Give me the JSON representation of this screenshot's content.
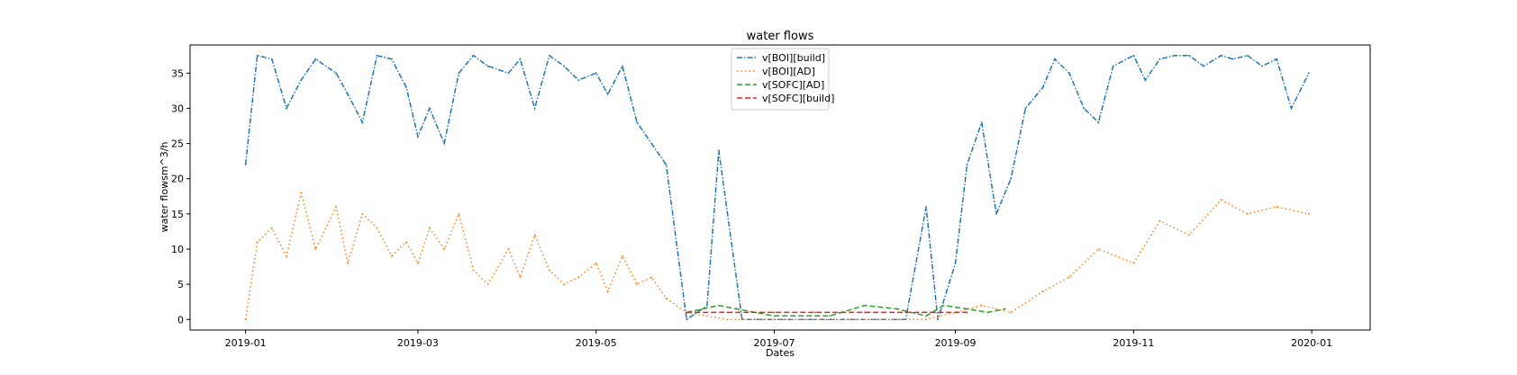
{
  "chart_data": {
    "type": "line",
    "title": "water flows",
    "xlabel": "Dates",
    "ylabel": "water flowsm^3/h",
    "xlim": [
      "2018-12-13",
      "2020-01-21"
    ],
    "ylim": [
      -1.5,
      39
    ],
    "x_ticks": [
      "2019-01",
      "2019-03",
      "2019-05",
      "2019-07",
      "2019-09",
      "2019-11",
      "2020-01"
    ],
    "y_ticks": [
      0,
      5,
      10,
      15,
      20,
      25,
      30,
      35
    ],
    "grid": false,
    "legend_position": "top-center",
    "series": [
      {
        "name": "v[BOI][build]",
        "color": "#1f77b4",
        "style": "dashdot",
        "x": [
          "2019-01-01",
          "2019-01-05",
          "2019-01-10",
          "2019-01-15",
          "2019-01-20",
          "2019-01-25",
          "2019-02-01",
          "2019-02-05",
          "2019-02-10",
          "2019-02-15",
          "2019-02-20",
          "2019-02-25",
          "2019-03-01",
          "2019-03-05",
          "2019-03-10",
          "2019-03-15",
          "2019-03-20",
          "2019-03-25",
          "2019-04-01",
          "2019-04-05",
          "2019-04-10",
          "2019-04-15",
          "2019-04-20",
          "2019-04-25",
          "2019-05-01",
          "2019-05-05",
          "2019-05-10",
          "2019-05-15",
          "2019-05-20",
          "2019-05-25",
          "2019-06-01",
          "2019-06-08",
          "2019-06-12",
          "2019-06-20",
          "2019-07-01",
          "2019-07-15",
          "2019-08-01",
          "2019-08-15",
          "2019-08-22",
          "2019-08-26",
          "2019-09-01",
          "2019-09-05",
          "2019-09-10",
          "2019-09-15",
          "2019-09-20",
          "2019-09-25",
          "2019-10-01",
          "2019-10-05",
          "2019-10-10",
          "2019-10-15",
          "2019-10-20",
          "2019-10-25",
          "2019-11-01",
          "2019-11-05",
          "2019-11-10",
          "2019-11-15",
          "2019-11-20",
          "2019-11-25",
          "2019-12-01",
          "2019-12-05",
          "2019-12-10",
          "2019-12-15",
          "2019-12-20",
          "2019-12-25",
          "2019-12-31"
        ],
        "values": [
          22,
          37.5,
          37,
          30,
          34,
          37,
          35,
          32,
          28,
          37.5,
          37,
          33,
          26,
          30,
          25,
          35,
          37.5,
          36,
          35,
          37,
          30,
          37.5,
          36,
          34,
          35,
          32,
          36,
          28,
          25,
          22,
          0,
          2,
          24,
          0,
          0,
          0,
          0,
          0,
          16,
          0,
          8,
          22,
          28,
          15,
          20,
          30,
          33,
          37,
          35,
          30,
          28,
          36,
          37.5,
          34,
          37,
          37.5,
          37.5,
          36,
          37.5,
          37,
          37.5,
          36,
          37,
          30,
          35
        ]
      },
      {
        "name": "v[BOI][AD]",
        "color": "#ff7f0e",
        "style": "dotted",
        "x": [
          "2019-01-01",
          "2019-01-05",
          "2019-01-10",
          "2019-01-15",
          "2019-01-20",
          "2019-01-25",
          "2019-02-01",
          "2019-02-05",
          "2019-02-10",
          "2019-02-15",
          "2019-02-20",
          "2019-02-25",
          "2019-03-01",
          "2019-03-05",
          "2019-03-10",
          "2019-03-15",
          "2019-03-20",
          "2019-03-25",
          "2019-04-01",
          "2019-04-05",
          "2019-04-10",
          "2019-04-15",
          "2019-04-20",
          "2019-04-25",
          "2019-05-01",
          "2019-05-05",
          "2019-05-10",
          "2019-05-15",
          "2019-05-20",
          "2019-05-25",
          "2019-06-01",
          "2019-06-15",
          "2019-07-01",
          "2019-08-01",
          "2019-08-22",
          "2019-09-01",
          "2019-09-10",
          "2019-09-20",
          "2019-10-01",
          "2019-10-10",
          "2019-10-20",
          "2019-11-01",
          "2019-11-10",
          "2019-11-20",
          "2019-12-01",
          "2019-12-10",
          "2019-12-20",
          "2019-12-31"
        ],
        "values": [
          0,
          11,
          13,
          9,
          18,
          10,
          16,
          8,
          15,
          13,
          9,
          11,
          8,
          13,
          10,
          15,
          7,
          5,
          10,
          6,
          12,
          7,
          5,
          6,
          8,
          4,
          9,
          5,
          6,
          3,
          1,
          0,
          0,
          0,
          0,
          1,
          2,
          1,
          4,
          6,
          10,
          8,
          14,
          12,
          17,
          15,
          16,
          15
        ]
      },
      {
        "name": "v[SOFC][AD]",
        "color": "#2ca02c",
        "style": "dashed",
        "x": [
          "2019-06-01",
          "2019-06-12",
          "2019-06-18",
          "2019-07-01",
          "2019-07-20",
          "2019-08-01",
          "2019-08-12",
          "2019-08-22",
          "2019-08-28",
          "2019-09-05",
          "2019-09-12",
          "2019-09-18"
        ],
        "values": [
          1,
          2,
          1.5,
          0.5,
          0.5,
          2,
          1.5,
          0.5,
          2,
          1.5,
          1,
          1.5
        ]
      },
      {
        "name": "v[SOFC][build]",
        "color": "#d62728",
        "style": "dashed",
        "x": [
          "2019-06-01",
          "2019-06-15",
          "2019-07-01",
          "2019-07-15",
          "2019-08-01",
          "2019-08-15",
          "2019-08-25",
          "2019-09-05"
        ],
        "values": [
          1,
          1,
          1,
          1,
          1,
          1,
          1,
          1
        ]
      }
    ]
  }
}
